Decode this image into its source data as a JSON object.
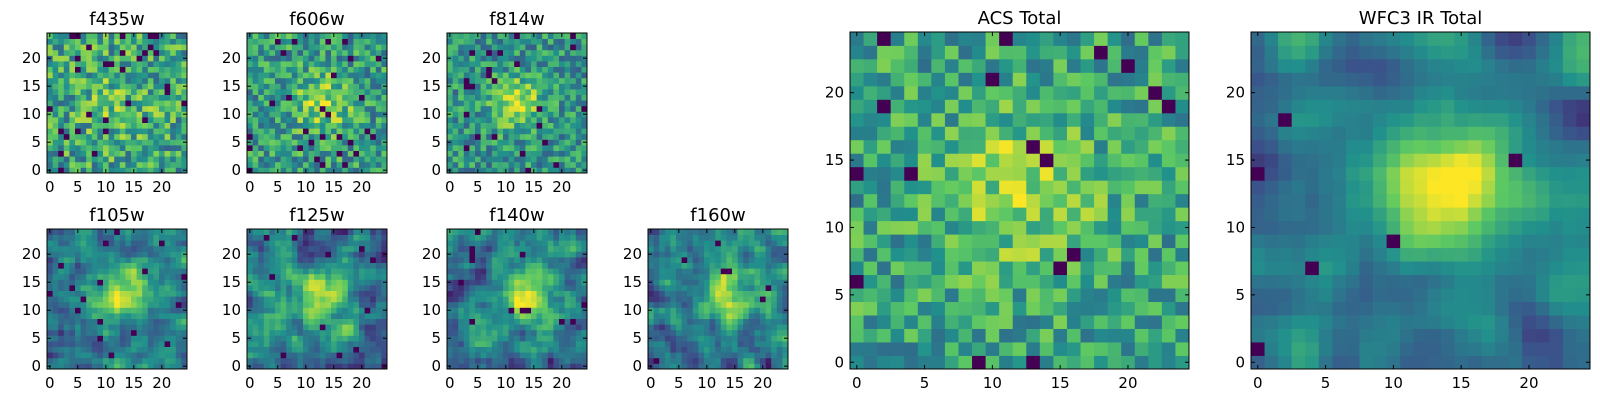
{
  "chart_data": {
    "type": "heatmap",
    "grid_size": 25,
    "colormap": [
      "#440154",
      "#3b528b",
      "#21918c",
      "#5ec962",
      "#fde725"
    ],
    "panels": [
      {
        "title": "f435w",
        "xticks": [
          0,
          5,
          10,
          15,
          20
        ],
        "yticks": [
          0,
          5,
          10,
          15,
          20
        ],
        "xlim": [
          -0.5,
          24.5
        ],
        "ylim": [
          -0.5,
          24.5
        ],
        "seed": 11,
        "source": {
          "x": 12,
          "y": 12,
          "sigma": 5,
          "amp": 0.12
        },
        "noise": 0.55,
        "base": 0.58,
        "smooth": 0,
        "dark": 0.05
      },
      {
        "title": "f606w",
        "xticks": [
          0,
          5,
          10,
          15,
          20
        ],
        "yticks": [
          0,
          5,
          10,
          15,
          20
        ],
        "xlim": [
          -0.5,
          24.5
        ],
        "ylim": [
          -0.5,
          24.5
        ],
        "seed": 23,
        "source": {
          "x": 13,
          "y": 12,
          "sigma": 3.5,
          "amp": 0.3
        },
        "noise": 0.5,
        "base": 0.55,
        "smooth": 0,
        "dark": 0.04
      },
      {
        "title": "f814w",
        "xticks": [
          0,
          5,
          10,
          15,
          20
        ],
        "yticks": [
          0,
          5,
          10,
          15,
          20
        ],
        "xlim": [
          -0.5,
          24.5
        ],
        "ylim": [
          -0.5,
          24.5
        ],
        "seed": 37,
        "source": {
          "x": 12,
          "y": 12,
          "sigma": 3,
          "amp": 0.4
        },
        "noise": 0.45,
        "base": 0.52,
        "smooth": 0,
        "dark": 0.04
      },
      {
        "title": "f105w",
        "xticks": [
          0,
          5,
          10,
          15,
          20
        ],
        "yticks": [
          0,
          5,
          10,
          15,
          20
        ],
        "xlim": [
          -0.5,
          24.5
        ],
        "ylim": [
          -0.5,
          24.5
        ],
        "seed": 41,
        "source": {
          "x": 13,
          "y": 13,
          "sigma": 3.5,
          "amp": 0.55
        },
        "noise": 0.55,
        "base": 0.4,
        "smooth": 1,
        "dark": 0.02
      },
      {
        "title": "f125w",
        "xticks": [
          0,
          5,
          10,
          15,
          20
        ],
        "yticks": [
          0,
          5,
          10,
          15,
          20
        ],
        "xlim": [
          -0.5,
          24.5
        ],
        "ylim": [
          -0.5,
          24.5
        ],
        "seed": 53,
        "source": {
          "x": 13,
          "y": 12,
          "sigma": 3.5,
          "amp": 0.45
        },
        "noise": 0.6,
        "base": 0.42,
        "smooth": 1,
        "dark": 0.02
      },
      {
        "title": "f140w",
        "xticks": [
          0,
          5,
          10,
          15,
          20
        ],
        "yticks": [
          0,
          5,
          10,
          15,
          20
        ],
        "xlim": [
          -0.5,
          24.5
        ],
        "ylim": [
          -0.5,
          24.5
        ],
        "seed": 67,
        "source": {
          "x": 14,
          "y": 13,
          "sigma": 3.5,
          "amp": 0.5
        },
        "noise": 0.6,
        "base": 0.42,
        "smooth": 1,
        "dark": 0.02
      },
      {
        "title": "f160w",
        "xticks": [
          0,
          5,
          10,
          15,
          20
        ],
        "yticks": [
          0,
          5,
          10,
          15,
          20
        ],
        "xlim": [
          -0.5,
          24.5
        ],
        "ylim": [
          -0.5,
          24.5
        ],
        "seed": 79,
        "source": {
          "x": 14,
          "y": 13,
          "sigma": 3.5,
          "amp": 0.5
        },
        "noise": 0.6,
        "base": 0.42,
        "smooth": 1,
        "dark": 0.02
      },
      {
        "title": "ACS Total",
        "xticks": [
          0,
          5,
          10,
          15,
          20
        ],
        "yticks": [
          0,
          5,
          10,
          15,
          20
        ],
        "xlim": [
          -0.5,
          24.5
        ],
        "ylim": [
          -0.5,
          24.5
        ],
        "seed": 97,
        "source": {
          "x": 12,
          "y": 13,
          "sigma": 4,
          "amp": 0.25
        },
        "noise": 0.45,
        "base": 0.58,
        "smooth": 0,
        "dark": 0.035
      },
      {
        "title": "WFC3 IR Total",
        "xticks": [
          0,
          5,
          10,
          15,
          20
        ],
        "yticks": [
          0,
          5,
          10,
          15,
          20
        ],
        "xlim": [
          -0.5,
          24.5
        ],
        "ylim": [
          -0.5,
          24.5
        ],
        "seed": 113,
        "source": {
          "x": 14,
          "y": 13,
          "sigma": 3.5,
          "amp": 0.6
        },
        "noise": 0.45,
        "base": 0.4,
        "smooth": 2,
        "dark": 0.015
      }
    ]
  }
}
